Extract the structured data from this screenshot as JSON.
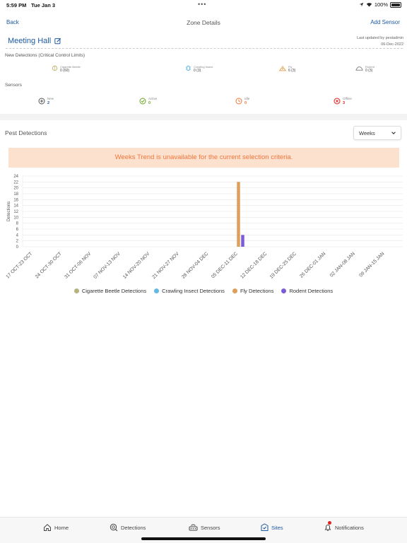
{
  "status_bar": {
    "time": "5:59 PM",
    "date": "Tue Jan 3",
    "battery": "100%"
  },
  "nav": {
    "back_label": "Back",
    "title": "Zone Details",
    "add_label": "Add Sensor"
  },
  "zone": {
    "name": "Meeting Hall",
    "updated_line1": "Last updated by pestadmin",
    "updated_line2": "06-Dec-2022"
  },
  "detections": {
    "section_label": "New Detections (Critical Control Limits)",
    "items": [
      {
        "label": "Cigarette Beetle",
        "value": "0 (60)",
        "icon": "cigarette-beetle-icon",
        "color": "#c9b97a"
      },
      {
        "label": "Crawling Insect",
        "value": "0 (3)",
        "icon": "crawling-insect-icon",
        "color": "#63b9e6"
      },
      {
        "label": "Fly",
        "value": "6 (3)",
        "icon": "fly-icon",
        "color": "#e6a55a"
      },
      {
        "label": "Rodent",
        "value": "0 (3)",
        "icon": "rodent-icon",
        "color": "#8a8a8a"
      }
    ]
  },
  "sensors": {
    "section_label": "Sensors",
    "items": [
      {
        "label": "New",
        "value": "2",
        "icon": "plus-circle-icon",
        "color": "#555555",
        "value_color": "#1e5aa0"
      },
      {
        "label": "Active",
        "value": "0",
        "icon": "check-circle-icon",
        "color": "#6aa624",
        "value_color": "#6aa624"
      },
      {
        "label": "Idle",
        "value": "0",
        "icon": "clock-icon",
        "color": "#f0763a",
        "value_color": "#f0763a"
      },
      {
        "label": "Offline",
        "value": "3",
        "icon": "x-circle-icon",
        "color": "#e02020",
        "value_color": "#e02020"
      }
    ]
  },
  "pest": {
    "title": "Pest Detections",
    "period_selected": "Weeks",
    "banner": "Weeks Trend is unavailable for the current selection criteria."
  },
  "chart_data": {
    "type": "bar",
    "ylabel": "Detections",
    "ylim": [
      0,
      24
    ],
    "yticks": [
      0,
      2,
      4,
      6,
      8,
      10,
      12,
      14,
      16,
      18,
      20,
      22,
      24
    ],
    "categories": [
      "17 OCT-23 OCT",
      "24 OCT-30 OCT",
      "31 OCT-06 NOV",
      "07 NOV-13 NOV",
      "14 NOV-20 NOV",
      "21 NOV-27 NOV",
      "28 NOV-04 DEC",
      "05 DEC-11 DEC",
      "12 DEC-18 DEC",
      "19 DEC-25 DEC",
      "26 DEC-01 JAN",
      "02 JAN-08 JAN",
      "09 JAN-15 JAN"
    ],
    "series": [
      {
        "name": "Cigarette Beetle Detections",
        "color": "#b5b27e",
        "values": [
          0,
          0,
          0,
          0,
          0,
          0,
          0,
          0,
          0,
          0,
          0,
          0,
          0
        ]
      },
      {
        "name": "Crawling Insect Detections",
        "color": "#63b9e6",
        "values": [
          0,
          0,
          0,
          0,
          0,
          0,
          0,
          0,
          0,
          0,
          0,
          0,
          0
        ]
      },
      {
        "name": "Fly Detections",
        "color": "#dd9f5a",
        "values": [
          0,
          0,
          0,
          0,
          0,
          0,
          0,
          22,
          0,
          0,
          0,
          0,
          0
        ]
      },
      {
        "name": "Rodent Detections",
        "color": "#7b5cd6",
        "values": [
          0,
          0,
          0,
          0,
          0,
          0,
          0,
          4,
          0,
          0,
          0,
          0,
          0
        ]
      }
    ],
    "grid": true,
    "legend_position": "bottom"
  },
  "tabs": [
    {
      "label": "Home",
      "icon": "home-icon"
    },
    {
      "label": "Detections",
      "icon": "detections-icon"
    },
    {
      "label": "Sensors",
      "icon": "sensors-icon"
    },
    {
      "label": "Sites",
      "icon": "sites-icon"
    },
    {
      "label": "Notifications",
      "icon": "bell-icon"
    }
  ]
}
